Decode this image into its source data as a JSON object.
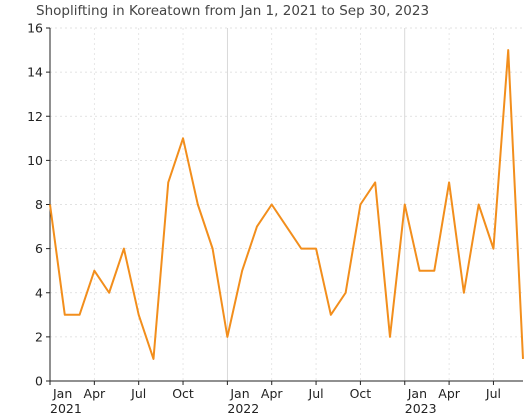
{
  "chart_data": {
    "type": "line",
    "title": "Shoplifting in Koreatown from Jan 1, 2021 to Sep 30, 2023",
    "xlabel": "",
    "ylabel": "",
    "ylim": [
      0,
      16
    ],
    "y_ticks": [
      0,
      2,
      4,
      6,
      8,
      10,
      12,
      14,
      16
    ],
    "x_ticks": [
      {
        "month": "2021-01",
        "label": "Jan",
        "year_label": "2021"
      },
      {
        "month": "2021-04",
        "label": "Apr",
        "year_label": ""
      },
      {
        "month": "2021-07",
        "label": "Jul",
        "year_label": ""
      },
      {
        "month": "2021-10",
        "label": "Oct",
        "year_label": ""
      },
      {
        "month": "2022-01",
        "label": "Jan",
        "year_label": "2022"
      },
      {
        "month": "2022-04",
        "label": "Apr",
        "year_label": ""
      },
      {
        "month": "2022-07",
        "label": "Jul",
        "year_label": ""
      },
      {
        "month": "2022-10",
        "label": "Oct",
        "year_label": ""
      },
      {
        "month": "2023-01",
        "label": "Jan",
        "year_label": "2023"
      },
      {
        "month": "2023-04",
        "label": "Apr",
        "year_label": ""
      },
      {
        "month": "2023-07",
        "label": "Jul",
        "year_label": ""
      }
    ],
    "grid": true,
    "line_color": "#f28e1c",
    "series": [
      {
        "x": [
          "2021-01",
          "2021-02",
          "2021-03",
          "2021-04",
          "2021-05",
          "2021-06",
          "2021-07",
          "2021-08",
          "2021-09",
          "2021-10",
          "2021-11",
          "2021-12",
          "2022-01",
          "2022-02",
          "2022-03",
          "2022-04",
          "2022-05",
          "2022-06",
          "2022-07",
          "2022-08",
          "2022-09",
          "2022-10",
          "2022-11",
          "2022-12",
          "2023-01",
          "2023-02",
          "2023-03",
          "2023-04",
          "2023-05",
          "2023-06",
          "2023-07",
          "2023-08",
          "2023-09"
        ],
        "values": [
          8,
          3,
          3,
          5,
          4,
          6,
          3,
          1,
          9,
          11,
          8,
          6,
          2,
          5,
          7,
          8,
          7,
          6,
          6,
          3,
          4,
          8,
          9,
          2,
          8,
          5,
          5,
          9,
          4,
          8,
          6,
          15,
          1
        ]
      }
    ]
  }
}
